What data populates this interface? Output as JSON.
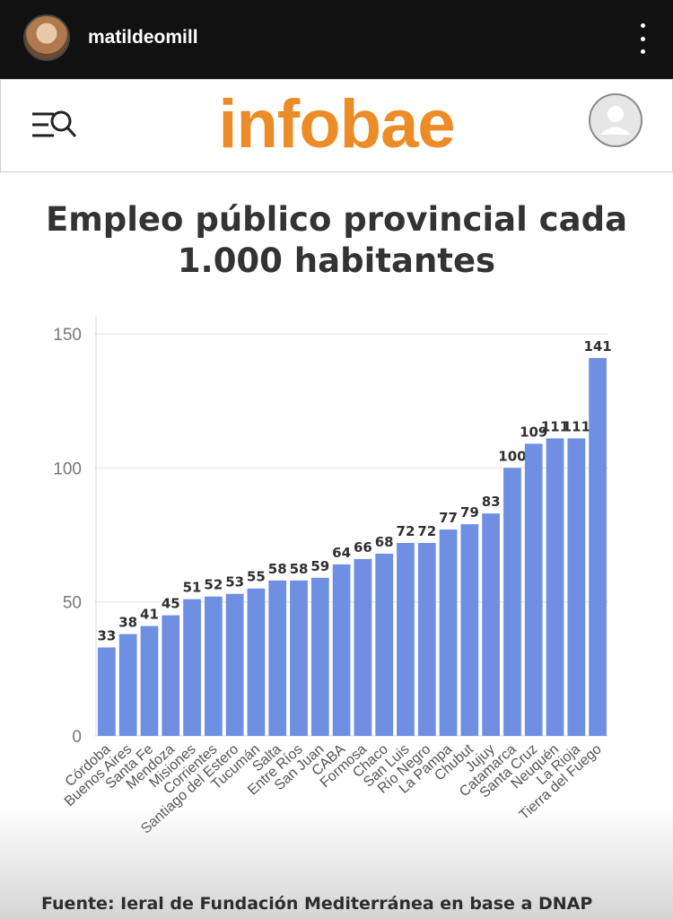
{
  "story": {
    "username": "matildeomill"
  },
  "header": {
    "logo": "infobae"
  },
  "chart_data": {
    "type": "bar",
    "title": "Empleo público provincial cada 1.000 habitantes",
    "categories": [
      "Córdoba",
      "Buenos Aires",
      "Santa Fe",
      "Mendoza",
      "Misiones",
      "Corrientes",
      "Santiago del Estero",
      "Tucumán",
      "Salta",
      "Entre Ríos",
      "San Juan",
      "CABA",
      "Formosa",
      "Chaco",
      "San Luis",
      "Río Negro",
      "La Pampa",
      "Chubut",
      "Jujuy",
      "Catamarca",
      "Santa Cruz",
      "Neuquén",
      "La Rioja",
      "Tierra del Fuego"
    ],
    "values": [
      33,
      38,
      41,
      45,
      51,
      52,
      53,
      55,
      58,
      58,
      59,
      64,
      66,
      68,
      72,
      72,
      77,
      79,
      83,
      100,
      109,
      111,
      111,
      141
    ],
    "ylim": [
      0,
      150
    ],
    "yticks": [
      0,
      50,
      100,
      150
    ],
    "bar_color": "#6f8fe3",
    "grid": true,
    "source": "Fuente: Ieral de Fundación Mediterránea en base a DNAP"
  }
}
